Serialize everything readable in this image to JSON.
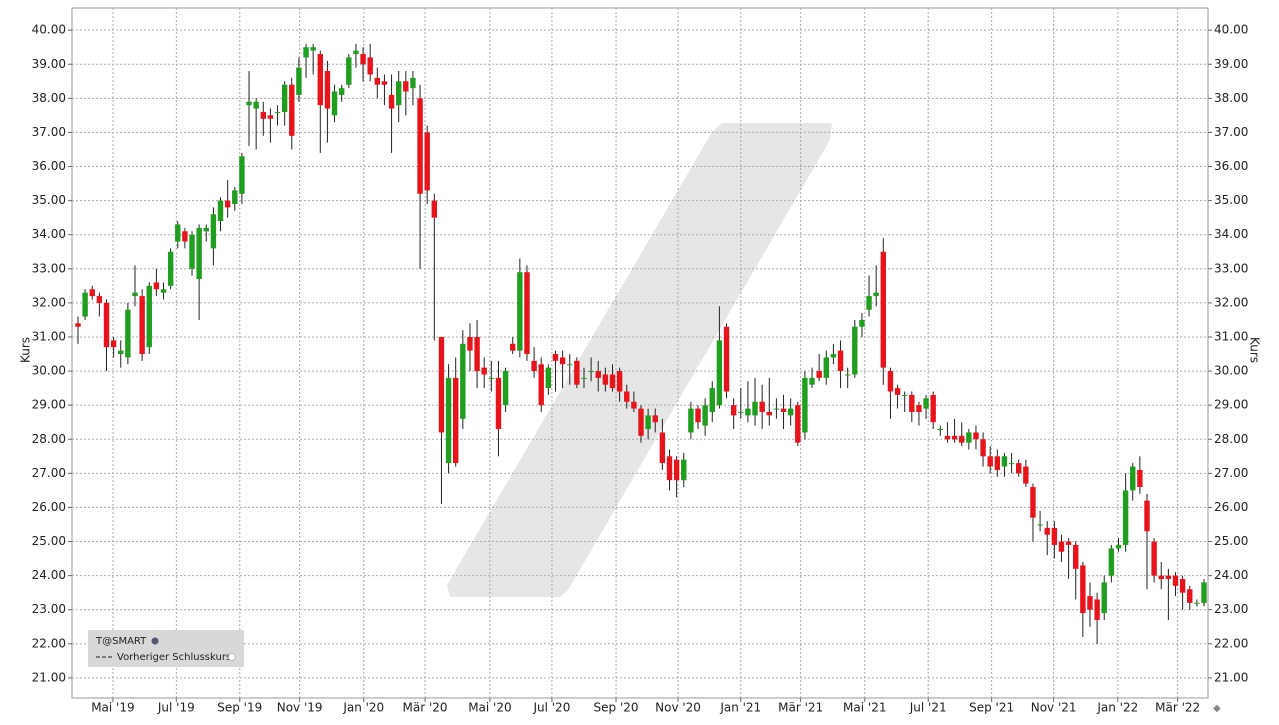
{
  "chart_data": {
    "type": "candlestick",
    "y_label": "Kurs",
    "legend": [
      "T@SMART",
      "Vorheriger Schlusskurs"
    ],
    "legend_corner": "bottom-left",
    "up_color": "#1f9e1f",
    "down_color": "#e8141c",
    "grid": true,
    "categories": [
      null,
      null,
      null,
      null,
      null,
      null,
      null,
      null,
      null,
      null,
      null,
      null,
      null,
      null,
      null,
      null,
      null,
      null,
      null,
      null,
      null,
      null,
      null,
      null,
      null,
      null,
      null,
      null,
      null,
      null,
      null,
      null,
      null,
      null,
      null,
      null,
      null,
      null,
      null,
      null,
      null,
      null,
      null,
      null,
      null,
      null,
      null,
      null,
      null,
      null,
      null,
      null,
      null,
      null,
      null,
      null,
      null,
      null,
      null,
      null,
      null,
      null,
      null,
      null,
      null,
      null,
      null,
      null,
      null,
      null,
      null,
      null,
      null,
      null,
      null,
      null,
      null,
      null,
      null,
      null,
      null,
      null,
      null,
      null,
      null,
      null,
      null,
      null,
      null,
      null,
      null,
      null,
      null,
      null,
      null,
      null,
      null,
      null,
      null,
      null,
      null,
      null,
      null,
      null,
      null,
      null,
      null,
      null,
      null,
      null,
      null,
      null,
      null,
      null,
      null,
      null,
      null,
      null,
      null,
      null,
      null,
      null,
      null,
      null,
      null,
      null,
      null,
      null,
      null,
      null,
      null,
      null,
      null,
      null,
      null,
      null,
      null,
      null,
      null,
      null,
      null,
      null,
      null,
      null,
      null,
      null,
      null,
      null,
      null,
      null,
      null,
      null,
      null,
      null,
      null,
      null,
      null,
      null,
      null
    ],
    "ohlc": [
      [
        31.4,
        31.6,
        30.8,
        31.3
      ],
      [
        31.6,
        32.4,
        31.5,
        32.3
      ],
      [
        32.4,
        32.5,
        32.1,
        32.2
      ],
      [
        32.2,
        32.3,
        31.6,
        32.0
      ],
      [
        32.0,
        32.1,
        30.0,
        30.7
      ],
      [
        30.9,
        31.0,
        30.4,
        30.7
      ],
      [
        30.5,
        30.9,
        30.1,
        30.6
      ],
      [
        30.4,
        32.0,
        30.2,
        31.8
      ],
      [
        32.2,
        33.1,
        31.9,
        32.3
      ],
      [
        32.2,
        32.4,
        30.3,
        30.5
      ],
      [
        30.7,
        32.6,
        30.5,
        32.5
      ],
      [
        32.6,
        33.0,
        32.2,
        32.4
      ],
      [
        32.3,
        32.6,
        32.1,
        32.4
      ],
      [
        32.5,
        33.6,
        32.4,
        33.5
      ],
      [
        33.8,
        34.4,
        33.6,
        34.3
      ],
      [
        34.1,
        34.2,
        33.6,
        33.8
      ],
      [
        33.0,
        34.1,
        32.8,
        34.0
      ],
      [
        32.7,
        34.3,
        31.5,
        34.2
      ],
      [
        34.1,
        34.3,
        33.8,
        34.2
      ],
      [
        33.6,
        34.8,
        33.1,
        34.6
      ],
      [
        34.4,
        35.1,
        34.1,
        35.0
      ],
      [
        35.0,
        35.6,
        34.5,
        34.8
      ],
      [
        34.9,
        35.4,
        34.7,
        35.3
      ],
      [
        35.2,
        36.4,
        34.9,
        36.3
      ],
      [
        37.8,
        38.8,
        36.6,
        37.9
      ],
      [
        37.7,
        38.0,
        36.5,
        37.9
      ],
      [
        37.6,
        37.9,
        36.9,
        37.4
      ],
      [
        37.5,
        37.7,
        36.7,
        37.4
      ],
      [
        37.6,
        37.8,
        37.2,
        37.6
      ],
      [
        37.6,
        38.5,
        37.2,
        38.4
      ],
      [
        38.4,
        38.6,
        36.5,
        36.9
      ],
      [
        38.1,
        39.2,
        37.9,
        38.9
      ],
      [
        39.2,
        39.6,
        38.6,
        39.5
      ],
      [
        39.4,
        39.6,
        38.7,
        39.5
      ],
      [
        39.3,
        39.4,
        36.4,
        37.8
      ],
      [
        38.8,
        39.1,
        36.7,
        37.7
      ],
      [
        37.5,
        38.4,
        37.3,
        38.2
      ],
      [
        38.1,
        38.4,
        37.9,
        38.3
      ],
      [
        38.4,
        39.3,
        38.3,
        39.2
      ],
      [
        39.3,
        39.6,
        38.9,
        39.4
      ],
      [
        39.3,
        39.5,
        38.5,
        39.0
      ],
      [
        39.2,
        39.6,
        38.5,
        38.7
      ],
      [
        38.6,
        38.9,
        38.0,
        38.4
      ],
      [
        38.5,
        38.7,
        37.8,
        38.4
      ],
      [
        38.1,
        38.7,
        36.4,
        37.7
      ],
      [
        37.8,
        38.8,
        37.3,
        38.5
      ],
      [
        38.5,
        38.8,
        37.5,
        38.2
      ],
      [
        38.3,
        38.8,
        37.8,
        38.6
      ],
      [
        38.0,
        38.4,
        33.0,
        35.2
      ],
      [
        37.0,
        37.2,
        34.9,
        35.3
      ],
      [
        35.0,
        35.2,
        30.9,
        34.5
      ],
      [
        31.0,
        31.0,
        26.1,
        28.2
      ],
      [
        27.3,
        30.2,
        27.0,
        29.8
      ],
      [
        29.8,
        30.4,
        27.2,
        27.3
      ],
      [
        28.6,
        31.2,
        28.3,
        30.8
      ],
      [
        31.0,
        31.4,
        30.0,
        30.6
      ],
      [
        31.0,
        31.5,
        29.5,
        30.0
      ],
      [
        30.1,
        30.4,
        29.5,
        29.9
      ],
      [
        29.8,
        30.3,
        29.4,
        29.8
      ],
      [
        29.8,
        30.3,
        27.5,
        28.3
      ],
      [
        29.0,
        30.1,
        28.8,
        30.0
      ],
      [
        30.8,
        31.0,
        30.5,
        30.6
      ],
      [
        30.6,
        33.3,
        30.4,
        32.9
      ],
      [
        32.9,
        33.1,
        30.3,
        30.5
      ],
      [
        30.3,
        30.7,
        29.8,
        30.0
      ],
      [
        30.2,
        30.4,
        28.8,
        29.0
      ],
      [
        29.5,
        30.2,
        29.3,
        30.1
      ],
      [
        30.5,
        30.6,
        29.4,
        30.3
      ],
      [
        30.4,
        30.6,
        29.5,
        30.2
      ],
      [
        30.2,
        30.5,
        29.6,
        30.2
      ],
      [
        30.3,
        30.4,
        29.5,
        29.6
      ],
      [
        29.8,
        30.1,
        29.5,
        29.8
      ],
      [
        30.0,
        30.4,
        29.7,
        30.0
      ],
      [
        30.0,
        30.3,
        29.4,
        29.8
      ],
      [
        29.9,
        30.1,
        29.4,
        29.6
      ],
      [
        29.9,
        30.2,
        29.4,
        29.5
      ],
      [
        30.0,
        30.1,
        29.1,
        29.4
      ],
      [
        29.4,
        29.6,
        28.9,
        29.1
      ],
      [
        29.1,
        29.4,
        28.8,
        28.9
      ],
      [
        28.9,
        29.0,
        27.9,
        28.1
      ],
      [
        28.3,
        28.9,
        28.0,
        28.7
      ],
      [
        28.7,
        28.9,
        28.2,
        28.5
      ],
      [
        28.2,
        28.6,
        27.1,
        27.3
      ],
      [
        27.5,
        27.7,
        26.5,
        26.8
      ],
      [
        27.4,
        27.5,
        26.3,
        26.8
      ],
      [
        26.8,
        27.6,
        26.6,
        27.4
      ],
      [
        28.2,
        29.1,
        28.0,
        28.9
      ],
      [
        28.9,
        29.0,
        28.3,
        28.5
      ],
      [
        28.4,
        29.2,
        28.1,
        29.0
      ],
      [
        28.8,
        29.7,
        28.5,
        29.5
      ],
      [
        29.0,
        31.9,
        28.9,
        30.9
      ],
      [
        31.3,
        31.4,
        29.2,
        29.4
      ],
      [
        29.0,
        29.2,
        28.3,
        28.7
      ],
      [
        28.8,
        29.5,
        28.6,
        28.8
      ],
      [
        28.7,
        29.7,
        28.5,
        28.9
      ],
      [
        28.7,
        29.8,
        28.4,
        29.1
      ],
      [
        29.1,
        29.6,
        28.3,
        28.8
      ],
      [
        28.8,
        29.8,
        28.4,
        28.7
      ],
      [
        28.9,
        29.2,
        28.6,
        28.9
      ],
      [
        28.9,
        29.3,
        28.3,
        28.8
      ],
      [
        28.7,
        29.2,
        28.4,
        28.9
      ],
      [
        29.0,
        29.1,
        27.8,
        27.9
      ],
      [
        28.2,
        30.0,
        28.0,
        29.8
      ],
      [
        29.6,
        30.1,
        29.5,
        29.8
      ],
      [
        30.0,
        30.5,
        29.7,
        29.8
      ],
      [
        29.8,
        30.6,
        29.6,
        30.4
      ],
      [
        30.4,
        30.8,
        30.2,
        30.5
      ],
      [
        30.6,
        30.9,
        29.5,
        30.0
      ],
      [
        29.9,
        30.1,
        29.5,
        29.9
      ],
      [
        29.9,
        31.5,
        29.8,
        31.3
      ],
      [
        31.3,
        31.7,
        31.0,
        31.5
      ],
      [
        31.8,
        32.8,
        31.6,
        32.2
      ],
      [
        32.2,
        33.1,
        31.9,
        32.3
      ],
      [
        33.5,
        33.9,
        29.6,
        30.1
      ],
      [
        30.0,
        30.1,
        28.6,
        29.4
      ],
      [
        29.5,
        29.6,
        28.9,
        29.3
      ],
      [
        29.3,
        29.4,
        28.8,
        29.3
      ],
      [
        29.3,
        29.4,
        28.5,
        28.8
      ],
      [
        29.0,
        29.1,
        28.4,
        28.8
      ],
      [
        28.9,
        29.3,
        28.6,
        29.2
      ],
      [
        29.3,
        29.4,
        28.3,
        28.5
      ],
      [
        28.3,
        28.4,
        28.1,
        28.3
      ],
      [
        28.1,
        28.5,
        27.9,
        28.0
      ],
      [
        28.1,
        28.6,
        27.9,
        28.0
      ],
      [
        28.1,
        28.5,
        27.8,
        27.9
      ],
      [
        27.9,
        28.3,
        27.7,
        28.2
      ],
      [
        28.2,
        28.4,
        27.7,
        28.0
      ],
      [
        28.0,
        28.2,
        27.2,
        27.5
      ],
      [
        27.5,
        27.8,
        27.0,
        27.2
      ],
      [
        27.5,
        27.7,
        26.9,
        27.1
      ],
      [
        27.2,
        27.6,
        26.9,
        27.5
      ],
      [
        27.3,
        27.6,
        27.0,
        27.3
      ],
      [
        27.3,
        27.4,
        26.9,
        27.0
      ],
      [
        27.2,
        27.4,
        26.6,
        26.7
      ],
      [
        26.6,
        26.7,
        25.0,
        25.7
      ],
      [
        25.5,
        25.9,
        25.3,
        25.5
      ],
      [
        25.4,
        25.6,
        24.6,
        25.2
      ],
      [
        25.4,
        25.6,
        24.5,
        24.9
      ],
      [
        25.0,
        25.2,
        24.4,
        24.7
      ],
      [
        25.0,
        25.1,
        23.9,
        24.9
      ],
      [
        24.9,
        25.0,
        23.3,
        24.2
      ],
      [
        24.3,
        24.4,
        22.2,
        22.9
      ],
      [
        23.4,
        23.8,
        22.5,
        23.0
      ],
      [
        23.3,
        23.5,
        22.0,
        22.7
      ],
      [
        22.9,
        24.0,
        22.7,
        23.8
      ],
      [
        24.0,
        24.9,
        23.8,
        24.8
      ],
      [
        24.8,
        25.1,
        24.7,
        24.9
      ],
      [
        24.9,
        27.0,
        24.7,
        26.5
      ],
      [
        26.5,
        27.3,
        26.2,
        27.2
      ],
      [
        27.1,
        27.5,
        26.4,
        26.6
      ],
      [
        26.2,
        26.4,
        23.6,
        25.3
      ],
      [
        25.0,
        25.1,
        23.8,
        24.0
      ],
      [
        24.0,
        24.4,
        23.6,
        23.9
      ],
      [
        24.0,
        24.2,
        22.7,
        23.9
      ],
      [
        24.0,
        24.1,
        23.4,
        23.7
      ],
      [
        23.9,
        24.0,
        23.0,
        23.5
      ],
      [
        23.6,
        23.7,
        23.0,
        23.2
      ],
      [
        23.2,
        23.3,
        23.1,
        23.2
      ],
      [
        23.2,
        23.9,
        23.1,
        23.8
      ]
    ],
    "xlim": [
      -0.84,
      158.56
    ],
    "xticks": [
      {
        "value": 4.9,
        "label": "Mai '19"
      },
      {
        "value": 13.8,
        "label": "Jul '19"
      },
      {
        "value": 22.7,
        "label": "Sep '19"
      },
      {
        "value": 31.1,
        "label": "Nov '19"
      },
      {
        "value": 40.1,
        "label": "Jan '20"
      },
      {
        "value": 48.7,
        "label": "Mär '20"
      },
      {
        "value": 57.8,
        "label": "Mai '20"
      },
      {
        "value": 66.5,
        "label": "Jul '20"
      },
      {
        "value": 75.5,
        "label": "Sep '20"
      },
      {
        "value": 84.2,
        "label": "Nov '20"
      },
      {
        "value": 93.0,
        "label": "Jan '21"
      },
      {
        "value": 101.4,
        "label": "Mär '21"
      },
      {
        "value": 110.4,
        "label": "Mai '21"
      },
      {
        "value": 119.3,
        "label": "Jul '21"
      },
      {
        "value": 128.2,
        "label": "Sep '21"
      },
      {
        "value": 136.9,
        "label": "Nov '21"
      },
      {
        "value": 145.9,
        "label": "Jan '22"
      },
      {
        "value": 154.3,
        "label": "Mär '22"
      }
    ],
    "ylim": [
      20.41,
      40.65
    ],
    "yticks": [
      {
        "value": 21,
        "label": "21.00"
      },
      {
        "value": 22,
        "label": "22.00"
      },
      {
        "value": 23,
        "label": "23.00"
      },
      {
        "value": 24,
        "label": "24.00"
      },
      {
        "value": 25,
        "label": "25.00"
      },
      {
        "value": 26,
        "label": "26.00"
      },
      {
        "value": 27,
        "label": "27.00"
      },
      {
        "value": 28,
        "label": "28.00"
      },
      {
        "value": 29,
        "label": "29.00"
      },
      {
        "value": 30,
        "label": "30.00"
      },
      {
        "value": 31,
        "label": "31.00"
      },
      {
        "value": 32,
        "label": "32.00"
      },
      {
        "value": 33,
        "label": "33.00"
      },
      {
        "value": 34,
        "label": "34.00"
      },
      {
        "value": 35,
        "label": "35.00"
      },
      {
        "value": 36,
        "label": "36.00"
      },
      {
        "value": 37,
        "label": "37.00"
      },
      {
        "value": 38,
        "label": "38.00"
      },
      {
        "value": 39,
        "label": "39.00"
      },
      {
        "value": 40,
        "label": "40.00"
      }
    ]
  }
}
